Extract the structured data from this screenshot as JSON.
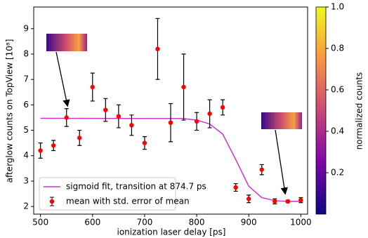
{
  "chart_data": {
    "type": "errorbar",
    "xlabel": "ionization laser delay [ps]",
    "ylabel": "afterglow counts on TopView [10⁸]",
    "xlim": [
      487,
      1013
    ],
    "ylim": [
      1.7,
      9.85
    ],
    "xticks": [
      500,
      600,
      700,
      800,
      900,
      1000
    ],
    "yticks": [
      2,
      3,
      4,
      5,
      6,
      7,
      8,
      9
    ],
    "legend": "lower left",
    "series": [
      {
        "name": "sigmoid fit, transition at 874.7 ps",
        "type": "line",
        "color": "#cc33cc",
        "x": [
          500,
          775,
          800,
          825,
          850,
          875,
          900,
          925,
          950,
          975,
          1000
        ],
        "values": [
          5.47,
          5.46,
          5.4,
          5.25,
          4.85,
          3.85,
          2.8,
          2.35,
          2.23,
          2.2,
          2.2
        ]
      },
      {
        "name": "mean with std. error of mean",
        "type": "errorbar",
        "color": "#ff0000",
        "x": [
          500,
          525,
          550,
          575,
          600,
          625,
          650,
          675,
          700,
          725,
          750,
          775,
          800,
          825,
          850,
          875,
          900,
          925,
          950,
          975,
          1000
        ],
        "values": [
          4.2,
          4.4,
          5.5,
          4.7,
          6.7,
          5.8,
          5.55,
          5.2,
          4.5,
          8.2,
          5.3,
          6.7,
          5.35,
          5.65,
          5.9,
          2.75,
          2.3,
          3.45,
          2.2,
          2.2,
          2.25
        ],
        "errors": [
          0.3,
          0.2,
          0.35,
          0.3,
          0.55,
          0.45,
          0.45,
          0.4,
          0.25,
          1.2,
          0.75,
          1.3,
          0.35,
          0.55,
          0.3,
          0.15,
          0.15,
          0.2,
          0.1,
          0.05,
          0.1
        ]
      }
    ],
    "colorbar": {
      "label": "normalized counts",
      "lim": [
        0,
        1
      ],
      "ticks": [
        0.2,
        0.4,
        0.6,
        0.8,
        {
          "value": 1,
          "label": "1.0"
        }
      ]
    }
  }
}
